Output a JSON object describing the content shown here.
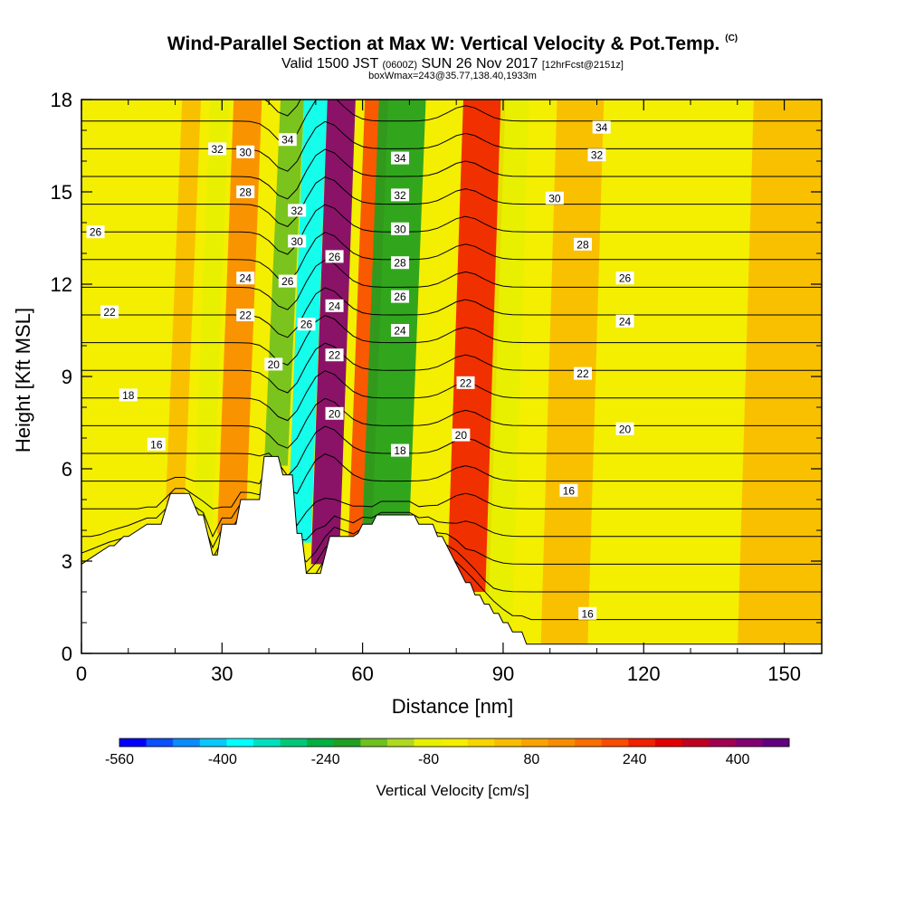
{
  "header": {
    "title": "Wind-Parallel Section at Max W: Vertical Velocity & Pot.Temp.",
    "copyright": "(C)",
    "valid_prefix": "Valid 1500 JST",
    "valid_utc": "(0600Z)",
    "valid_date": "SUN 26 Nov 2017",
    "forecast": "[12hrFcst@2151z]",
    "box_info": "boxWmax=243@35.77,138.40,1933m"
  },
  "colors": {
    "background_fill": "#f4ee00",
    "terrain": "#ffffff",
    "contour_line": "#000000",
    "colorbar": [
      "#0000ff",
      "#0a50ff",
      "#0a8cff",
      "#0ac8ff",
      "#00ffff",
      "#00e0c0",
      "#00c878",
      "#00b040",
      "#20a020",
      "#70c020",
      "#b0d820",
      "#e6f000",
      "#f4ee00",
      "#f8d400",
      "#f8bc00",
      "#f8a400",
      "#f88c00",
      "#f86e00",
      "#f84c00",
      "#f02000",
      "#e00000",
      "#c00020",
      "#a00050",
      "#800070",
      "#600080"
    ]
  },
  "chart_data": {
    "type": "heatmap",
    "title": "Wind-Parallel Section at Max W: Vertical Velocity & Pot.Temp.",
    "xlabel": "Distance [nm]",
    "ylabel": "Height [Kft MSL]",
    "xlim": [
      0,
      158
    ],
    "ylim": [
      0,
      18
    ],
    "x_ticks": [
      0,
      30,
      60,
      90,
      120,
      150
    ],
    "y_ticks": [
      0,
      3,
      6,
      9,
      12,
      15,
      18
    ],
    "colorbar": {
      "label": "Vertical Velocity [cm/s]",
      "min": -560,
      "max": 480,
      "tick_values": [
        -560,
        -400,
        -240,
        -80,
        80,
        240,
        400
      ],
      "tick_labels": [
        "-560",
        "-400",
        "-240",
        "-80",
        "80",
        "240",
        "400"
      ]
    },
    "vertical_velocity_bands": [
      {
        "x0": 18,
        "x1": 22,
        "w": 30
      },
      {
        "x0": 24,
        "x1": 28,
        "w": -90
      },
      {
        "x0": 29,
        "x1": 35,
        "w": 120
      },
      {
        "x0": 39,
        "x1": 44,
        "w": -160
      },
      {
        "x0": 44,
        "x1": 49,
        "w": -360
      },
      {
        "x0": 49,
        "x1": 55,
        "w": 400
      },
      {
        "x0": 57,
        "x1": 62,
        "w": 220
      },
      {
        "x0": 60,
        "x1": 70,
        "w": -200
      },
      {
        "x0": 78,
        "x1": 87,
        "w": 240
      },
      {
        "x0": 86,
        "x1": 92,
        "w": -100
      },
      {
        "x0": 98,
        "x1": 108,
        "w": 60
      },
      {
        "x0": 140,
        "x1": 158,
        "w": 60
      }
    ],
    "terrain_profile": {
      "x": [
        0,
        3,
        6,
        7,
        9,
        10,
        14,
        17,
        19,
        20,
        22,
        23,
        25,
        26,
        28,
        29,
        30,
        31,
        32,
        33,
        34,
        35,
        36,
        37,
        38,
        39,
        40,
        41,
        42,
        43,
        44,
        45,
        46,
        47,
        48,
        49,
        50,
        51,
        52,
        53,
        54,
        55,
        56,
        57,
        58,
        59,
        60,
        61,
        62,
        63,
        64,
        65,
        66,
        67,
        68,
        69,
        70,
        71,
        72,
        73,
        74,
        75,
        76,
        77,
        78,
        79,
        80,
        81,
        82,
        83,
        84,
        85,
        86,
        87,
        88,
        89,
        90,
        91,
        92,
        93,
        94,
        95,
        96,
        97,
        98,
        99,
        100,
        101,
        102,
        103,
        104,
        105,
        106,
        107,
        108,
        110,
        115,
        120,
        125,
        130,
        135,
        140,
        145,
        150,
        155,
        158
      ],
      "y": [
        2.9,
        3.2,
        3.5,
        3.5,
        3.8,
        3.8,
        4.2,
        4.2,
        5.2,
        5.2,
        5.2,
        5.2,
        4.5,
        4.5,
        3.2,
        3.2,
        4.2,
        4.2,
        4.2,
        4.2,
        5.0,
        5.0,
        5.0,
        5.0,
        5.0,
        6.4,
        6.4,
        6.4,
        6.4,
        5.8,
        5.8,
        5.8,
        3.9,
        3.9,
        2.6,
        2.6,
        2.6,
        2.6,
        3.2,
        3.8,
        3.8,
        3.8,
        3.8,
        3.8,
        3.8,
        3.9,
        4.2,
        4.2,
        4.2,
        4.5,
        4.5,
        4.5,
        4.5,
        4.5,
        4.5,
        4.5,
        4.5,
        4.5,
        4.2,
        4.2,
        4.2,
        4.2,
        3.8,
        3.8,
        3.5,
        3.2,
        2.9,
        2.6,
        2.3,
        2.3,
        1.9,
        1.9,
        1.6,
        1.6,
        1.3,
        1.3,
        1.0,
        1.0,
        0.7,
        0.7,
        0.7,
        0.3,
        0.3,
        0.3,
        0.3,
        0.3,
        0.3,
        0.3,
        0.3,
        0.3,
        0.3,
        0.3,
        0.3,
        0.3,
        0.3,
        0.3,
        0.3,
        0.3,
        0.3,
        0.3,
        0.3,
        0.3,
        0.3,
        0.3,
        0.3,
        0.3
      ]
    },
    "potential_temperature_labels": [
      {
        "text": "16",
        "x": 16,
        "y": 6.8
      },
      {
        "text": "18",
        "x": 10,
        "y": 8.4
      },
      {
        "text": "22",
        "x": 6,
        "y": 11.1
      },
      {
        "text": "26",
        "x": 3,
        "y": 13.7
      },
      {
        "text": "32",
        "x": 29,
        "y": 16.4
      },
      {
        "text": "30",
        "x": 35,
        "y": 16.3
      },
      {
        "text": "28",
        "x": 35,
        "y": 15.0
      },
      {
        "text": "24",
        "x": 35,
        "y": 12.2
      },
      {
        "text": "22",
        "x": 35,
        "y": 11.0
      },
      {
        "text": "34",
        "x": 44,
        "y": 16.7
      },
      {
        "text": "32",
        "x": 46,
        "y": 14.4
      },
      {
        "text": "30",
        "x": 46,
        "y": 13.4
      },
      {
        "text": "26",
        "x": 44,
        "y": 12.1
      },
      {
        "text": "26",
        "x": 48,
        "y": 10.7
      },
      {
        "text": "20",
        "x": 41,
        "y": 9.4
      },
      {
        "text": "26",
        "x": 54,
        "y": 12.9
      },
      {
        "text": "24",
        "x": 54,
        "y": 11.3
      },
      {
        "text": "22",
        "x": 54,
        "y": 9.7
      },
      {
        "text": "20",
        "x": 54,
        "y": 7.8
      },
      {
        "text": "34",
        "x": 68,
        "y": 16.1
      },
      {
        "text": "32",
        "x": 68,
        "y": 14.9
      },
      {
        "text": "30",
        "x": 68,
        "y": 13.8
      },
      {
        "text": "28",
        "x": 68,
        "y": 12.7
      },
      {
        "text": "26",
        "x": 68,
        "y": 11.6
      },
      {
        "text": "24",
        "x": 68,
        "y": 10.5
      },
      {
        "text": "18",
        "x": 68,
        "y": 6.6
      },
      {
        "text": "22",
        "x": 82,
        "y": 8.8
      },
      {
        "text": "20",
        "x": 81,
        "y": 7.1
      },
      {
        "text": "34",
        "x": 111,
        "y": 17.1
      },
      {
        "text": "32",
        "x": 110,
        "y": 16.2
      },
      {
        "text": "30",
        "x": 101,
        "y": 14.8
      },
      {
        "text": "28",
        "x": 107,
        "y": 13.3
      },
      {
        "text": "26",
        "x": 116,
        "y": 12.2
      },
      {
        "text": "24",
        "x": 116,
        "y": 10.8
      },
      {
        "text": "22",
        "x": 107,
        "y": 9.1
      },
      {
        "text": "20",
        "x": 116,
        "y": 7.3
      },
      {
        "text": "16",
        "x": 104,
        "y": 5.3
      },
      {
        "text": "16",
        "x": 108,
        "y": 1.3
      }
    ]
  }
}
